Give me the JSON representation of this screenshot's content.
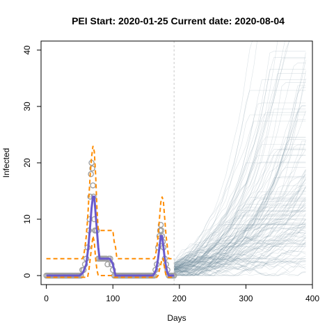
{
  "chart_data": {
    "type": "line",
    "title": "PEI Start:  2020-01-25   Current date:  2020-08-04",
    "xlabel": "Days",
    "ylabel": "Infected",
    "xlim": [
      -8,
      400
    ],
    "ylim": [
      -1.6,
      41.6
    ],
    "xticks": [
      0,
      100,
      200,
      300,
      400
    ],
    "yticks": [
      0,
      10,
      20,
      30,
      40
    ],
    "current_day": 192,
    "colors": {
      "observed": "#a0a0a0",
      "fit": "#6a5acd",
      "band": "#ff8c00",
      "current_line": "#c8c8c8",
      "simulations": "#6f8a9a"
    },
    "series": [
      {
        "role": "observed",
        "x": [
          0,
          2,
          4,
          6,
          8,
          10,
          12,
          14,
          16,
          18,
          20,
          22,
          24,
          26,
          28,
          30,
          32,
          34,
          36,
          38,
          40,
          42,
          44,
          46,
          48,
          50,
          52,
          54,
          56,
          58,
          60,
          62,
          64,
          65,
          66,
          67,
          68,
          69,
          70,
          71,
          72,
          73,
          74,
          76,
          78,
          80,
          82,
          84,
          86,
          88,
          90,
          92,
          94,
          96,
          98,
          100,
          102,
          104,
          106,
          108,
          110,
          112,
          114,
          116,
          118,
          120,
          122,
          124,
          126,
          128,
          130,
          132,
          134,
          136,
          138,
          140,
          142,
          144,
          146,
          148,
          150,
          152,
          154,
          156,
          158,
          160,
          162,
          164,
          166,
          168,
          170,
          171,
          172,
          173,
          174,
          175,
          176,
          178,
          180,
          182,
          184,
          186,
          188,
          190,
          192
        ],
        "y": [
          0,
          0,
          0,
          0,
          0,
          0,
          0,
          0,
          0,
          0,
          0,
          0,
          0,
          0,
          0,
          0,
          0,
          0,
          0,
          0,
          0,
          0,
          0,
          0,
          0,
          0,
          0,
          1,
          1,
          2,
          3,
          5,
          8,
          10,
          14,
          18,
          20,
          19,
          16,
          14,
          10,
          8,
          8,
          8,
          3,
          3,
          3,
          3,
          3,
          3,
          3,
          2,
          3,
          3,
          2,
          1,
          0,
          0,
          0,
          0,
          0,
          0,
          0,
          0,
          0,
          0,
          0,
          0,
          0,
          0,
          0,
          0,
          0,
          0,
          0,
          0,
          0,
          0,
          0,
          0,
          0,
          0,
          0,
          0,
          0,
          0,
          0,
          1,
          2,
          5,
          7,
          8,
          9,
          8,
          7,
          6,
          5,
          3,
          2,
          1,
          0,
          0,
          0,
          0,
          0
        ]
      },
      {
        "role": "fit",
        "x": [
          0,
          50,
          55,
          60,
          63,
          66,
          68,
          70,
          72,
          74,
          76,
          78,
          80,
          84,
          90,
          95,
          98,
          100,
          102,
          104,
          106,
          108,
          160,
          162,
          165,
          168,
          170,
          172,
          174,
          176,
          178,
          180,
          182,
          184,
          186,
          192
        ],
        "y": [
          0,
          0,
          0.5,
          2,
          5,
          9,
          12,
          14,
          14,
          11,
          8,
          5,
          3,
          3,
          3,
          3,
          2.5,
          2,
          1,
          0,
          0,
          0,
          0,
          0.3,
          1,
          3,
          5,
          7,
          7,
          5,
          3,
          1.5,
          0.5,
          0,
          0,
          0
        ]
      },
      {
        "role": "band-upper",
        "x": [
          0,
          48,
          50,
          52,
          54,
          56,
          58,
          60,
          62,
          64,
          66,
          68,
          70,
          72,
          74,
          76,
          78,
          80,
          82,
          84,
          88,
          96,
          98,
          100,
          102,
          104,
          106,
          108,
          110,
          160,
          162,
          164,
          166,
          168,
          170,
          172,
          174,
          176,
          178,
          180,
          182,
          184,
          186,
          188,
          190,
          192
        ],
        "y": [
          3,
          3,
          3,
          3,
          3,
          3.5,
          5,
          7,
          10,
          14,
          18,
          21,
          23,
          22,
          18,
          12,
          8,
          8,
          8,
          8,
          8,
          8,
          8,
          8,
          6,
          5,
          3,
          3,
          3,
          3,
          3,
          3.5,
          5,
          7,
          10,
          13,
          14,
          13,
          10,
          7,
          5,
          3,
          3,
          3,
          3,
          3
        ]
      },
      {
        "role": "band-lower",
        "x": [
          0,
          60,
          62,
          64,
          66,
          68,
          70,
          72,
          74,
          76,
          78,
          82,
          86,
          90,
          96,
          100,
          102,
          104,
          106,
          108,
          110,
          160,
          166,
          168,
          170,
          172,
          174,
          176,
          178,
          180,
          182,
          184,
          186,
          192
        ],
        "y": [
          -0.3,
          -0.3,
          -0.3,
          1,
          3,
          5,
          7,
          6,
          3,
          1,
          0,
          0,
          0,
          0,
          0,
          0,
          -0.3,
          -0.3,
          -0.3,
          -0.3,
          -0.3,
          -0.3,
          -0.3,
          0,
          1,
          2,
          3,
          3,
          1,
          0,
          -0.3,
          -0.3,
          -0.3,
          -0.3
        ]
      }
    ]
  }
}
